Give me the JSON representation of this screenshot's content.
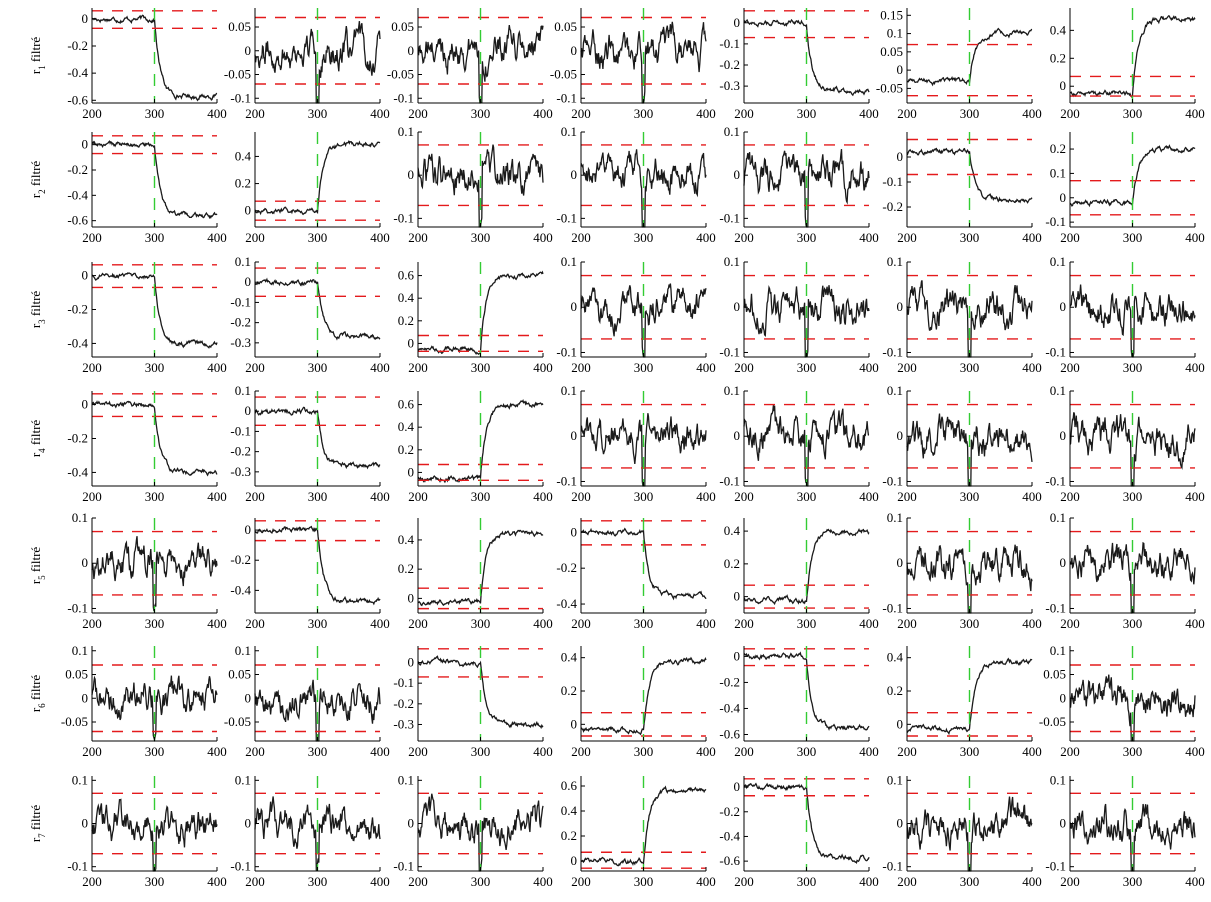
{
  "figure": {
    "colors": {
      "signal": "#1a1a1a",
      "threshold": "#e41a1c",
      "change_marker": "#33cc33",
      "axis": "#000000"
    },
    "x_range": [
      200,
      400
    ],
    "x_ticks": [
      200,
      300,
      400
    ],
    "change_x": 300,
    "row_labels": [
      {
        "prefix": "r",
        "sub": "1",
        "suffix": " filtré"
      },
      {
        "prefix": "r",
        "sub": "2",
        "suffix": " filtré"
      },
      {
        "prefix": "r",
        "sub": "3",
        "suffix": " filtré"
      },
      {
        "prefix": "r",
        "sub": "4",
        "suffix": " filtré"
      },
      {
        "prefix": "r",
        "sub": "5",
        "suffix": " filtré"
      },
      {
        "prefix": "r",
        "sub": "6",
        "suffix": " filtré"
      },
      {
        "prefix": "r",
        "sub": "7",
        "suffix": " filtré"
      }
    ]
  },
  "chart_data": [
    {
      "type": "line",
      "row": 1,
      "col": 1,
      "ylim": [
        -0.62,
        0.08
      ],
      "yticks": [
        "-0.6",
        "-0.4",
        "-0.2",
        "0"
      ],
      "thresholds": [
        0.07,
        -0.07
      ],
      "series": [
        {
          "shape": "step",
          "pre": 0.0,
          "post": -0.57
        }
      ]
    },
    {
      "type": "line",
      "row": 1,
      "col": 2,
      "ylim": [
        -0.11,
        0.09
      ],
      "yticks": [
        "-0.1",
        "-0.05",
        "0",
        "0.05"
      ],
      "thresholds": [
        0.07,
        -0.07
      ],
      "series": [
        {
          "shape": "noise",
          "pre": 0.0,
          "post": 0.0
        }
      ]
    },
    {
      "type": "line",
      "row": 1,
      "col": 3,
      "ylim": [
        -0.11,
        0.09
      ],
      "yticks": [
        "-0.1",
        "-0.05",
        "0",
        "0.05"
      ],
      "thresholds": [
        0.07,
        -0.07
      ],
      "series": [
        {
          "shape": "noise",
          "pre": 0.0,
          "post": 0.0
        }
      ]
    },
    {
      "type": "line",
      "row": 1,
      "col": 4,
      "ylim": [
        -0.11,
        0.09
      ],
      "yticks": [
        "-0.1",
        "-0.05",
        "0",
        "0.05"
      ],
      "thresholds": [
        0.07,
        -0.07
      ],
      "series": [
        {
          "shape": "noise",
          "pre": 0.0,
          "post": 0.0
        }
      ]
    },
    {
      "type": "line",
      "row": 1,
      "col": 5,
      "ylim": [
        -0.38,
        0.07
      ],
      "yticks": [
        "-0.3",
        "-0.2",
        "-0.1",
        "0"
      ],
      "thresholds": [
        0.07,
        -0.07
      ],
      "series": [
        {
          "shape": "step",
          "pre": 0.0,
          "post": -0.32
        }
      ]
    },
    {
      "type": "line",
      "row": 1,
      "col": 6,
      "ylim": [
        -0.09,
        0.17
      ],
      "yticks": [
        "-0.05",
        "0",
        "0.05",
        "0.1",
        "0.15"
      ],
      "thresholds": [
        0.07,
        -0.07
      ],
      "series": [
        {
          "shape": "step",
          "pre": -0.03,
          "post": 0.1
        }
      ]
    },
    {
      "type": "line",
      "row": 1,
      "col": 7,
      "ylim": [
        -0.12,
        0.56
      ],
      "yticks": [
        "0",
        "0.2",
        "0.4"
      ],
      "thresholds": [
        0.07,
        -0.07
      ],
      "series": [
        {
          "shape": "step",
          "pre": -0.05,
          "post": 0.48
        }
      ]
    },
    {
      "type": "line",
      "row": 2,
      "col": 1,
      "ylim": [
        -0.65,
        0.1
      ],
      "yticks": [
        "-0.6",
        "-0.4",
        "-0.2",
        "0"
      ],
      "thresholds": [
        0.07,
        -0.07
      ],
      "series": [
        {
          "shape": "step",
          "pre": 0.0,
          "post": -0.57
        }
      ]
    },
    {
      "type": "line",
      "row": 2,
      "col": 2,
      "ylim": [
        -0.12,
        0.58
      ],
      "yticks": [
        "0",
        "0.2",
        "0.4"
      ],
      "thresholds": [
        0.07,
        -0.07
      ],
      "series": [
        {
          "shape": "step",
          "pre": 0.0,
          "post": 0.5
        }
      ]
    },
    {
      "type": "line",
      "row": 2,
      "col": 3,
      "ylim": [
        -0.12,
        0.1
      ],
      "yticks": [
        "-0.1",
        "0",
        "0.1"
      ],
      "thresholds": [
        0.07,
        -0.07
      ],
      "series": [
        {
          "shape": "noise",
          "pre": 0.0,
          "post": 0.0
        }
      ]
    },
    {
      "type": "line",
      "row": 2,
      "col": 4,
      "ylim": [
        -0.12,
        0.1
      ],
      "yticks": [
        "-0.1",
        "0",
        "0.1"
      ],
      "thresholds": [
        0.07,
        -0.07
      ],
      "series": [
        {
          "shape": "noise",
          "pre": 0.0,
          "post": 0.0
        }
      ]
    },
    {
      "type": "line",
      "row": 2,
      "col": 5,
      "ylim": [
        -0.12,
        0.1
      ],
      "yticks": [
        "-0.1",
        "0",
        "0.1"
      ],
      "thresholds": [
        0.07,
        -0.07
      ],
      "series": [
        {
          "shape": "noise",
          "pre": 0.0,
          "post": 0.0
        }
      ]
    },
    {
      "type": "line",
      "row": 2,
      "col": 6,
      "ylim": [
        -0.28,
        0.1
      ],
      "yticks": [
        "-0.2",
        "-0.1",
        "0"
      ],
      "thresholds": [
        0.07,
        -0.07
      ],
      "series": [
        {
          "shape": "step",
          "pre": 0.02,
          "post": -0.17
        }
      ]
    },
    {
      "type": "line",
      "row": 2,
      "col": 7,
      "ylim": [
        -0.12,
        0.27
      ],
      "yticks": [
        "-0.1",
        "0",
        "0.1",
        "0.2"
      ],
      "thresholds": [
        0.07,
        -0.07
      ],
      "series": [
        {
          "shape": "step",
          "pre": -0.02,
          "post": 0.2
        }
      ]
    },
    {
      "type": "line",
      "row": 3,
      "col": 1,
      "ylim": [
        -0.48,
        0.08
      ],
      "yticks": [
        "-0.4",
        "-0.2",
        "0"
      ],
      "thresholds": [
        0.07,
        -0.07
      ],
      "series": [
        {
          "shape": "step",
          "pre": 0.0,
          "post": -0.4
        }
      ]
    },
    {
      "type": "line",
      "row": 3,
      "col": 2,
      "ylim": [
        -0.37,
        0.1
      ],
      "yticks": [
        "-0.3",
        "-0.2",
        "-0.1",
        "0",
        "0.1"
      ],
      "thresholds": [
        0.07,
        -0.07
      ],
      "series": [
        {
          "shape": "step",
          "pre": 0.0,
          "post": -0.27
        }
      ]
    },
    {
      "type": "line",
      "row": 3,
      "col": 3,
      "ylim": [
        -0.12,
        0.72
      ],
      "yticks": [
        "0",
        "0.2",
        "0.4",
        "0.6"
      ],
      "thresholds": [
        0.07,
        -0.07
      ],
      "series": [
        {
          "shape": "step",
          "pre": -0.05,
          "post": 0.6
        }
      ]
    },
    {
      "type": "line",
      "row": 3,
      "col": 4,
      "ylim": [
        -0.11,
        0.1
      ],
      "yticks": [
        "-0.1",
        "0",
        "0.1"
      ],
      "thresholds": [
        0.07,
        -0.07
      ],
      "series": [
        {
          "shape": "noise",
          "pre": 0.0,
          "post": 0.0
        }
      ]
    },
    {
      "type": "line",
      "row": 3,
      "col": 5,
      "ylim": [
        -0.11,
        0.1
      ],
      "yticks": [
        "-0.1",
        "0",
        "0.1"
      ],
      "thresholds": [
        0.07,
        -0.07
      ],
      "series": [
        {
          "shape": "noise",
          "pre": 0.0,
          "post": 0.0
        }
      ]
    },
    {
      "type": "line",
      "row": 3,
      "col": 6,
      "ylim": [
        -0.11,
        0.1
      ],
      "yticks": [
        "-0.1",
        "0",
        "0.1"
      ],
      "thresholds": [
        0.07,
        -0.07
      ],
      "series": [
        {
          "shape": "noise",
          "pre": 0.0,
          "post": 0.0
        }
      ]
    },
    {
      "type": "line",
      "row": 3,
      "col": 7,
      "ylim": [
        -0.11,
        0.1
      ],
      "yticks": [
        "-0.1",
        "0",
        "0.1"
      ],
      "thresholds": [
        0.07,
        -0.07
      ],
      "series": [
        {
          "shape": "noise",
          "pre": 0.0,
          "post": 0.0
        }
      ]
    },
    {
      "type": "line",
      "row": 4,
      "col": 1,
      "ylim": [
        -0.48,
        0.08
      ],
      "yticks": [
        "-0.4",
        "-0.2",
        "0"
      ],
      "thresholds": [
        0.07,
        -0.07
      ],
      "series": [
        {
          "shape": "step",
          "pre": 0.0,
          "post": -0.4
        }
      ]
    },
    {
      "type": "line",
      "row": 4,
      "col": 2,
      "ylim": [
        -0.37,
        0.1
      ],
      "yticks": [
        "-0.3",
        "-0.2",
        "-0.1",
        "0",
        "0.1"
      ],
      "thresholds": [
        0.07,
        -0.07
      ],
      "series": [
        {
          "shape": "step",
          "pre": 0.0,
          "post": -0.27
        }
      ]
    },
    {
      "type": "line",
      "row": 4,
      "col": 3,
      "ylim": [
        -0.12,
        0.72
      ],
      "yticks": [
        "0",
        "0.2",
        "0.4",
        "0.6"
      ],
      "thresholds": [
        0.07,
        -0.07
      ],
      "series": [
        {
          "shape": "step",
          "pre": -0.05,
          "post": 0.6
        }
      ]
    },
    {
      "type": "line",
      "row": 4,
      "col": 4,
      "ylim": [
        -0.11,
        0.1
      ],
      "yticks": [
        "-0.1",
        "0",
        "0.1"
      ],
      "thresholds": [
        0.07,
        -0.07
      ],
      "series": [
        {
          "shape": "noise",
          "pre": 0.0,
          "post": 0.0
        }
      ]
    },
    {
      "type": "line",
      "row": 4,
      "col": 5,
      "ylim": [
        -0.11,
        0.1
      ],
      "yticks": [
        "-0.1",
        "0",
        "0.1"
      ],
      "thresholds": [
        0.07,
        -0.07
      ],
      "series": [
        {
          "shape": "noise",
          "pre": 0.0,
          "post": 0.0
        }
      ]
    },
    {
      "type": "line",
      "row": 4,
      "col": 6,
      "ylim": [
        -0.11,
        0.1
      ],
      "yticks": [
        "-0.1",
        "0",
        "0.1"
      ],
      "thresholds": [
        0.07,
        -0.07
      ],
      "series": [
        {
          "shape": "noise",
          "pre": 0.0,
          "post": 0.0
        }
      ]
    },
    {
      "type": "line",
      "row": 4,
      "col": 7,
      "ylim": [
        -0.11,
        0.1
      ],
      "yticks": [
        "-0.1",
        "0",
        "0.1"
      ],
      "thresholds": [
        0.07,
        -0.07
      ],
      "series": [
        {
          "shape": "noise",
          "pre": 0.0,
          "post": 0.0
        }
      ]
    },
    {
      "type": "line",
      "row": 5,
      "col": 1,
      "ylim": [
        -0.11,
        0.1
      ],
      "yticks": [
        "-0.1",
        "0",
        "0.1"
      ],
      "thresholds": [
        0.07,
        -0.07
      ],
      "series": [
        {
          "shape": "noise",
          "pre": 0.0,
          "post": 0.0
        }
      ]
    },
    {
      "type": "line",
      "row": 5,
      "col": 2,
      "ylim": [
        -0.55,
        0.08
      ],
      "yticks": [
        "-0.4",
        "-0.2",
        "0"
      ],
      "thresholds": [
        0.07,
        -0.07
      ],
      "series": [
        {
          "shape": "step",
          "pre": 0.0,
          "post": -0.47
        }
      ]
    },
    {
      "type": "line",
      "row": 5,
      "col": 3,
      "ylim": [
        -0.1,
        0.55
      ],
      "yticks": [
        "0",
        "0.2",
        "0.4"
      ],
      "thresholds": [
        0.07,
        -0.07
      ],
      "series": [
        {
          "shape": "step",
          "pre": -0.02,
          "post": 0.45
        }
      ]
    },
    {
      "type": "line",
      "row": 5,
      "col": 4,
      "ylim": [
        -0.45,
        0.08
      ],
      "yticks": [
        "-0.4",
        "-0.2",
        "0"
      ],
      "thresholds": [
        0.07,
        -0.07
      ],
      "series": [
        {
          "shape": "step",
          "pre": 0.0,
          "post": -0.35
        }
      ]
    },
    {
      "type": "line",
      "row": 5,
      "col": 5,
      "ylim": [
        -0.1,
        0.48
      ],
      "yticks": [
        "0",
        "0.2",
        "0.4"
      ],
      "thresholds": [
        0.07,
        -0.07
      ],
      "series": [
        {
          "shape": "step",
          "pre": -0.02,
          "post": 0.4
        }
      ]
    },
    {
      "type": "line",
      "row": 5,
      "col": 6,
      "ylim": [
        -0.11,
        0.1
      ],
      "yticks": [
        "-0.1",
        "0",
        "0.1"
      ],
      "thresholds": [
        0.07,
        -0.07
      ],
      "series": [
        {
          "shape": "noise",
          "pre": 0.0,
          "post": 0.0
        }
      ]
    },
    {
      "type": "line",
      "row": 5,
      "col": 7,
      "ylim": [
        -0.11,
        0.1
      ],
      "yticks": [
        "-0.1",
        "0",
        "0.1"
      ],
      "thresholds": [
        0.07,
        -0.07
      ],
      "series": [
        {
          "shape": "noise",
          "pre": 0.0,
          "post": 0.0
        }
      ]
    },
    {
      "type": "line",
      "row": 6,
      "col": 1,
      "ylim": [
        -0.09,
        0.11
      ],
      "yticks": [
        "-0.05",
        "0",
        "0.05",
        "0.1"
      ],
      "thresholds": [
        0.07,
        -0.07
      ],
      "series": [
        {
          "shape": "noise",
          "pre": 0.0,
          "post": 0.0
        }
      ]
    },
    {
      "type": "line",
      "row": 6,
      "col": 2,
      "ylim": [
        -0.09,
        0.11
      ],
      "yticks": [
        "-0.05",
        "0",
        "0.05",
        "0.1"
      ],
      "thresholds": [
        0.07,
        -0.07
      ],
      "series": [
        {
          "shape": "noise",
          "pre": 0.0,
          "post": 0.0
        }
      ]
    },
    {
      "type": "line",
      "row": 6,
      "col": 3,
      "ylim": [
        -0.38,
        0.08
      ],
      "yticks": [
        "-0.3",
        "-0.2",
        "-0.1",
        "0"
      ],
      "thresholds": [
        0.07,
        -0.07
      ],
      "series": [
        {
          "shape": "step",
          "pre": 0.0,
          "post": -0.3
        }
      ]
    },
    {
      "type": "line",
      "row": 6,
      "col": 4,
      "ylim": [
        -0.1,
        0.47
      ],
      "yticks": [
        "0",
        "0.2",
        "0.4"
      ],
      "thresholds": [
        0.07,
        -0.07
      ],
      "series": [
        {
          "shape": "step",
          "pre": -0.03,
          "post": 0.38
        }
      ]
    },
    {
      "type": "line",
      "row": 6,
      "col": 5,
      "ylim": [
        -0.65,
        0.08
      ],
      "yticks": [
        "-0.6",
        "-0.4",
        "-0.2",
        "0"
      ],
      "thresholds": [
        0.07,
        -0.07
      ],
      "series": [
        {
          "shape": "step",
          "pre": 0.0,
          "post": -0.55
        }
      ]
    },
    {
      "type": "line",
      "row": 6,
      "col": 6,
      "ylim": [
        -0.1,
        0.47
      ],
      "yticks": [
        "0",
        "0.2",
        "0.4"
      ],
      "thresholds": [
        0.07,
        -0.07
      ],
      "series": [
        {
          "shape": "step",
          "pre": -0.03,
          "post": 0.38
        }
      ]
    },
    {
      "type": "line",
      "row": 6,
      "col": 7,
      "ylim": [
        -0.09,
        0.11
      ],
      "yticks": [
        "-0.05",
        "0",
        "0.05",
        "0.1"
      ],
      "thresholds": [
        0.07,
        -0.07
      ],
      "series": [
        {
          "shape": "noise",
          "pre": 0.0,
          "post": 0.0
        }
      ]
    },
    {
      "type": "line",
      "row": 7,
      "col": 1,
      "ylim": [
        -0.11,
        0.11
      ],
      "yticks": [
        "-0.1",
        "0",
        "0.1"
      ],
      "thresholds": [
        0.07,
        -0.07
      ],
      "series": [
        {
          "shape": "noise",
          "pre": 0.0,
          "post": 0.0
        }
      ]
    },
    {
      "type": "line",
      "row": 7,
      "col": 2,
      "ylim": [
        -0.11,
        0.11
      ],
      "yticks": [
        "-0.1",
        "0",
        "0.1"
      ],
      "thresholds": [
        0.07,
        -0.07
      ],
      "series": [
        {
          "shape": "noise",
          "pre": 0.0,
          "post": 0.0
        }
      ]
    },
    {
      "type": "line",
      "row": 7,
      "col": 3,
      "ylim": [
        -0.11,
        0.11
      ],
      "yticks": [
        "-0.1",
        "0",
        "0.1"
      ],
      "thresholds": [
        0.07,
        -0.07
      ],
      "series": [
        {
          "shape": "noise",
          "pre": 0.0,
          "post": 0.0
        }
      ]
    },
    {
      "type": "line",
      "row": 7,
      "col": 4,
      "ylim": [
        -0.08,
        0.68
      ],
      "yticks": [
        "0",
        "0.2",
        "0.4",
        "0.6"
      ],
      "thresholds": [
        0.07,
        -0.07
      ],
      "series": [
        {
          "shape": "step",
          "pre": 0.0,
          "post": 0.57
        }
      ]
    },
    {
      "type": "line",
      "row": 7,
      "col": 5,
      "ylim": [
        -0.68,
        0.09
      ],
      "yticks": [
        "-0.6",
        "-0.4",
        "-0.2",
        "0"
      ],
      "thresholds": [
        0.07,
        -0.07
      ],
      "series": [
        {
          "shape": "step",
          "pre": 0.0,
          "post": -0.57
        }
      ]
    },
    {
      "type": "line",
      "row": 7,
      "col": 6,
      "ylim": [
        -0.11,
        0.11
      ],
      "yticks": [
        "-0.1",
        "0",
        "0.1"
      ],
      "thresholds": [
        0.07,
        -0.07
      ],
      "series": [
        {
          "shape": "noise",
          "pre": 0.0,
          "post": 0.0
        }
      ]
    },
    {
      "type": "line",
      "row": 7,
      "col": 7,
      "ylim": [
        -0.11,
        0.11
      ],
      "yticks": [
        "-0.1",
        "0",
        "0.1"
      ],
      "thresholds": [
        0.07,
        -0.07
      ],
      "series": [
        {
          "shape": "noise",
          "pre": 0.0,
          "post": 0.0
        }
      ]
    }
  ]
}
